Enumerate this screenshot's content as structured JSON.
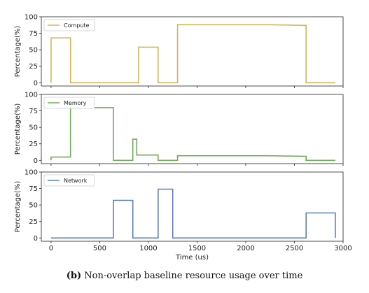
{
  "caption": {
    "label": "(b)",
    "text": "Non-overlap baseline resource usage over time"
  },
  "colors": {
    "compute": "#d4b65a",
    "memory": "#72ab5b",
    "network": "#5b7fbc"
  },
  "chart_data": [
    {
      "type": "line",
      "step": true,
      "ylabel": "Percentage(%)",
      "xlabel": "",
      "xlim": [
        -100,
        3000
      ],
      "ylim": [
        -5,
        100
      ],
      "yticks": [
        0,
        25,
        50,
        75,
        100
      ],
      "xticks": [],
      "legend": "top-left",
      "series": [
        {
          "name": "Compute",
          "color": "#d4b65a",
          "points": [
            [
              0,
              0
            ],
            [
              0,
              68
            ],
            [
              200,
              68
            ],
            [
              200,
              0
            ],
            [
              900,
              0
            ],
            [
              900,
              54
            ],
            [
              1100,
              54
            ],
            [
              1100,
              0
            ],
            [
              1300,
              0
            ],
            [
              1300,
              88
            ],
            [
              2200,
              88
            ],
            [
              2620,
              87
            ],
            [
              2620,
              0
            ],
            [
              2920,
              0
            ]
          ]
        }
      ]
    },
    {
      "type": "line",
      "step": true,
      "ylabel": "Percentage(%)",
      "xlabel": "",
      "xlim": [
        -100,
        3000
      ],
      "ylim": [
        -5,
        100
      ],
      "yticks": [
        0,
        25,
        50,
        75,
        100
      ],
      "xticks": [],
      "legend": "top-left",
      "series": [
        {
          "name": "Memory",
          "color": "#72ab5b",
          "points": [
            [
              0,
              0
            ],
            [
              0,
              5
            ],
            [
              200,
              5
            ],
            [
              200,
              80
            ],
            [
              640,
              80
            ],
            [
              640,
              0
            ],
            [
              840,
              0
            ],
            [
              840,
              32
            ],
            [
              880,
              32
            ],
            [
              880,
              8
            ],
            [
              1100,
              8
            ],
            [
              1100,
              0
            ],
            [
              1300,
              0
            ],
            [
              1300,
              7
            ],
            [
              2200,
              7
            ],
            [
              2620,
              6
            ],
            [
              2620,
              0
            ],
            [
              2920,
              0
            ]
          ]
        }
      ]
    },
    {
      "type": "line",
      "step": true,
      "ylabel": "Percentage(%)",
      "xlabel": "Time (us)",
      "xlim": [
        -100,
        3000
      ],
      "ylim": [
        -5,
        100
      ],
      "yticks": [
        0,
        25,
        50,
        75,
        100
      ],
      "xticks": [
        0,
        500,
        1000,
        1500,
        2000,
        2500,
        3000
      ],
      "legend": "top-left",
      "series": [
        {
          "name": "Network",
          "color": "#5b7fbc",
          "points": [
            [
              0,
              0
            ],
            [
              640,
              0
            ],
            [
              640,
              57
            ],
            [
              840,
              57
            ],
            [
              840,
              0
            ],
            [
              1100,
              0
            ],
            [
              1100,
              74
            ],
            [
              1250,
              74
            ],
            [
              1250,
              0
            ],
            [
              2620,
              0
            ],
            [
              2620,
              38
            ],
            [
              2920,
              38
            ],
            [
              2920,
              0
            ]
          ]
        }
      ]
    }
  ]
}
